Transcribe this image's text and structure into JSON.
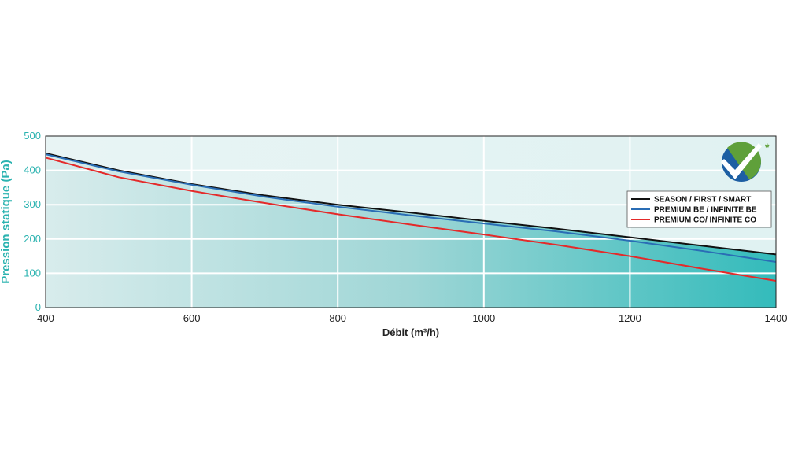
{
  "chart_data": {
    "type": "line",
    "xlabel": "Débit (m³/h)",
    "ylabel": "Pression statique (Pa)",
    "xlim": [
      400,
      1400
    ],
    "ylim": [
      0,
      500
    ],
    "x_ticks": [
      400,
      600,
      800,
      1000,
      1200,
      1400
    ],
    "y_ticks": [
      0,
      100,
      200,
      300,
      400,
      500
    ],
    "grid": true,
    "legend_position": "top-right",
    "series": [
      {
        "name": "SEASON / FIRST / SMART",
        "color": "#111111",
        "x": [
          400,
          500,
          600,
          700,
          800,
          900,
          1000,
          1100,
          1200,
          1300,
          1400
        ],
        "y": [
          450,
          400,
          360,
          327,
          300,
          277,
          253,
          230,
          205,
          180,
          155
        ]
      },
      {
        "name": "PREMIUM BE / INFINITE BE",
        "color": "#2a6db5",
        "x": [
          400,
          500,
          600,
          700,
          800,
          900,
          1000,
          1100,
          1200,
          1300,
          1400
        ],
        "y": [
          447,
          397,
          358,
          323,
          294,
          269,
          245,
          222,
          195,
          165,
          133
        ]
      },
      {
        "name": "PREMIUM CO/ INFINITE CO",
        "color": "#e42a2a",
        "x": [
          400,
          500,
          600,
          700,
          800,
          900,
          1000,
          1100,
          1200,
          1300,
          1400
        ],
        "y": [
          437,
          380,
          340,
          305,
          272,
          242,
          213,
          183,
          150,
          113,
          78
        ]
      }
    ]
  },
  "logo": {
    "asterisk": "*",
    "icon": "checkmark-badge-icon",
    "colors": [
      "#1d5fa3",
      "#5fa03a"
    ]
  }
}
